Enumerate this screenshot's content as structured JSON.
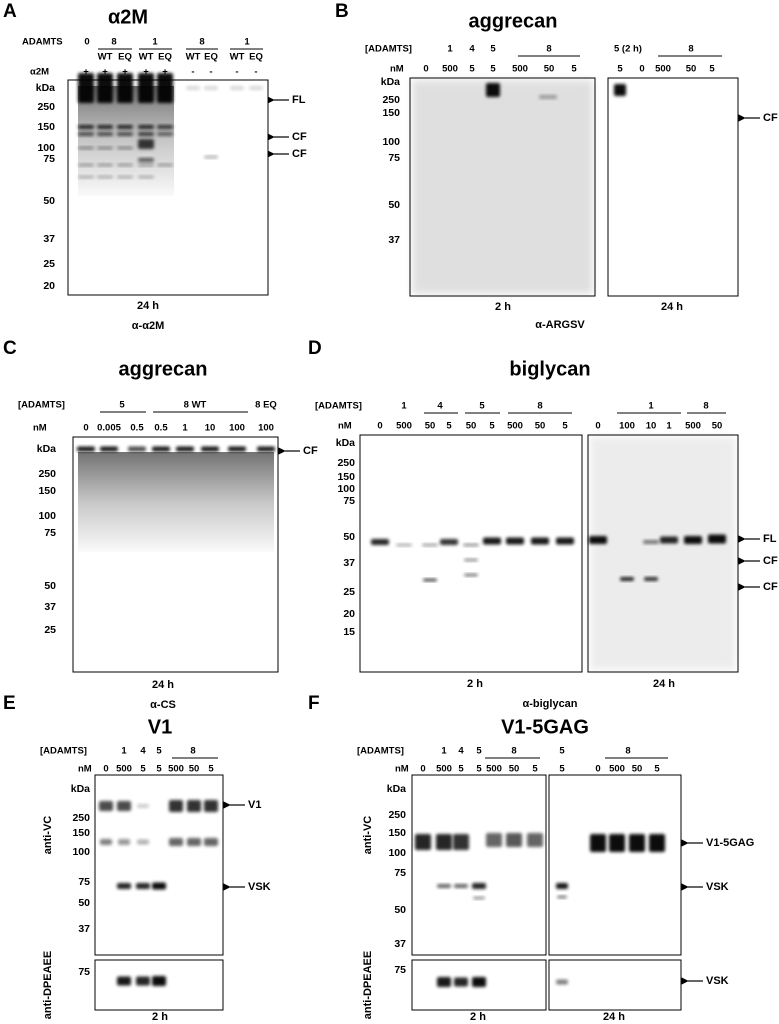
{
  "panels": [
    {
      "letter": "A",
      "title": "α2M",
      "rows": [
        {
          "label": "ADAMTS",
          "items": [
            "0",
            "8",
            "1",
            "8",
            "1"
          ]
        },
        {
          "items": [
            "WT",
            "EQ",
            "WT",
            "EQ",
            "WT",
            "EQ",
            "WT",
            "EQ"
          ]
        },
        {
          "label": "α2M",
          "items": [
            "+",
            "+",
            "+",
            "+",
            "+",
            "-",
            "-",
            "-",
            "-"
          ]
        }
      ],
      "kda_label": "kDa",
      "markers": [
        250,
        150,
        100,
        75,
        50,
        37,
        25,
        20
      ],
      "annotations": [
        "FL",
        "CF",
        "CF"
      ],
      "footers": [
        "24 h"
      ],
      "antibody": "α-α2M"
    },
    {
      "letter": "B",
      "title": "aggrecan",
      "rows": [
        {
          "label": "[ADAMTS]",
          "items": [
            "1",
            "4",
            "5",
            "8",
            "5 (2 h)",
            "8"
          ]
        },
        {
          "label": "nM",
          "items": [
            "0",
            "500",
            "5",
            "5",
            "500",
            "50",
            "5",
            "5",
            "0",
            "500",
            "50",
            "5"
          ]
        }
      ],
      "kda_label": "kDa",
      "markers": [
        250,
        150,
        100,
        75,
        50,
        37
      ],
      "annotations": [
        "CF"
      ],
      "footers": [
        "2 h",
        "24 h"
      ],
      "antibody": "α-ARGSV"
    },
    {
      "letter": "C",
      "title": "aggrecan",
      "rows": [
        {
          "label": "[ADAMTS]",
          "items": [
            "5",
            "8 WT",
            "8 EQ"
          ]
        },
        {
          "label": "nM",
          "items": [
            "0",
            "0.005",
            "0.5",
            "0.5",
            "1",
            "10",
            "100",
            "100"
          ]
        }
      ],
      "kda_label": "kDa",
      "markers": [
        250,
        150,
        100,
        75,
        50,
        37,
        25
      ],
      "annotations": [
        "CF"
      ],
      "footers": [
        "24 h"
      ],
      "antibody": "α-CS"
    },
    {
      "letter": "D",
      "title": "biglycan",
      "rows": [
        {
          "label": "[ADAMTS]",
          "items": [
            "1",
            "4",
            "5",
            "8",
            "1",
            "8"
          ]
        },
        {
          "label": "nM",
          "items": [
            "0",
            "500",
            "50",
            "5",
            "50",
            "5",
            "500",
            "50",
            "5",
            "0",
            "100",
            "10",
            "1",
            "500",
            "50"
          ]
        }
      ],
      "kda_label": "kDa",
      "markers": [
        250,
        150,
        100,
        75,
        50,
        37,
        25,
        20,
        15
      ],
      "annotations": [
        "FL",
        "CF",
        "CF"
      ],
      "footers": [
        "2 h",
        "24 h"
      ],
      "antibody": "α-biglycan"
    },
    {
      "letter": "E",
      "title": "V1",
      "rows": [
        {
          "label": "[ADAMTS]",
          "items": [
            "1",
            "4",
            "5",
            "8"
          ]
        },
        {
          "label": "nM",
          "items": [
            "0",
            "500",
            "5",
            "5",
            "500",
            "50",
            "5"
          ]
        }
      ],
      "kda_label": "kDa",
      "markers": [
        250,
        150,
        100,
        75,
        50,
        37
      ],
      "markers_lower": [
        75
      ],
      "probes": [
        "anti-VC",
        "anti-DPEAEE"
      ],
      "annotations": [
        "V1",
        "VSK"
      ],
      "footers": [
        "2 h"
      ]
    },
    {
      "letter": "F",
      "title": "V1-5GAG",
      "rows": [
        {
          "label": "[ADAMTS]",
          "items": [
            "1",
            "4",
            "5",
            "8",
            "5",
            "8"
          ]
        },
        {
          "label": "nM",
          "items": [
            "0",
            "500",
            "5",
            "5",
            "500",
            "50",
            "5",
            "5",
            "0",
            "500",
            "50",
            "5"
          ]
        }
      ],
      "kda_label": "kDa",
      "markers": [
        250,
        150,
        100,
        75,
        50,
        37
      ],
      "markers_lower": [
        75
      ],
      "probes": [
        "anti-VC",
        "anti-DPEAEE"
      ],
      "annotations": [
        "V1-5GAG",
        "VSK",
        "VSK"
      ],
      "footers": [
        "2 h",
        "24 h"
      ]
    }
  ]
}
